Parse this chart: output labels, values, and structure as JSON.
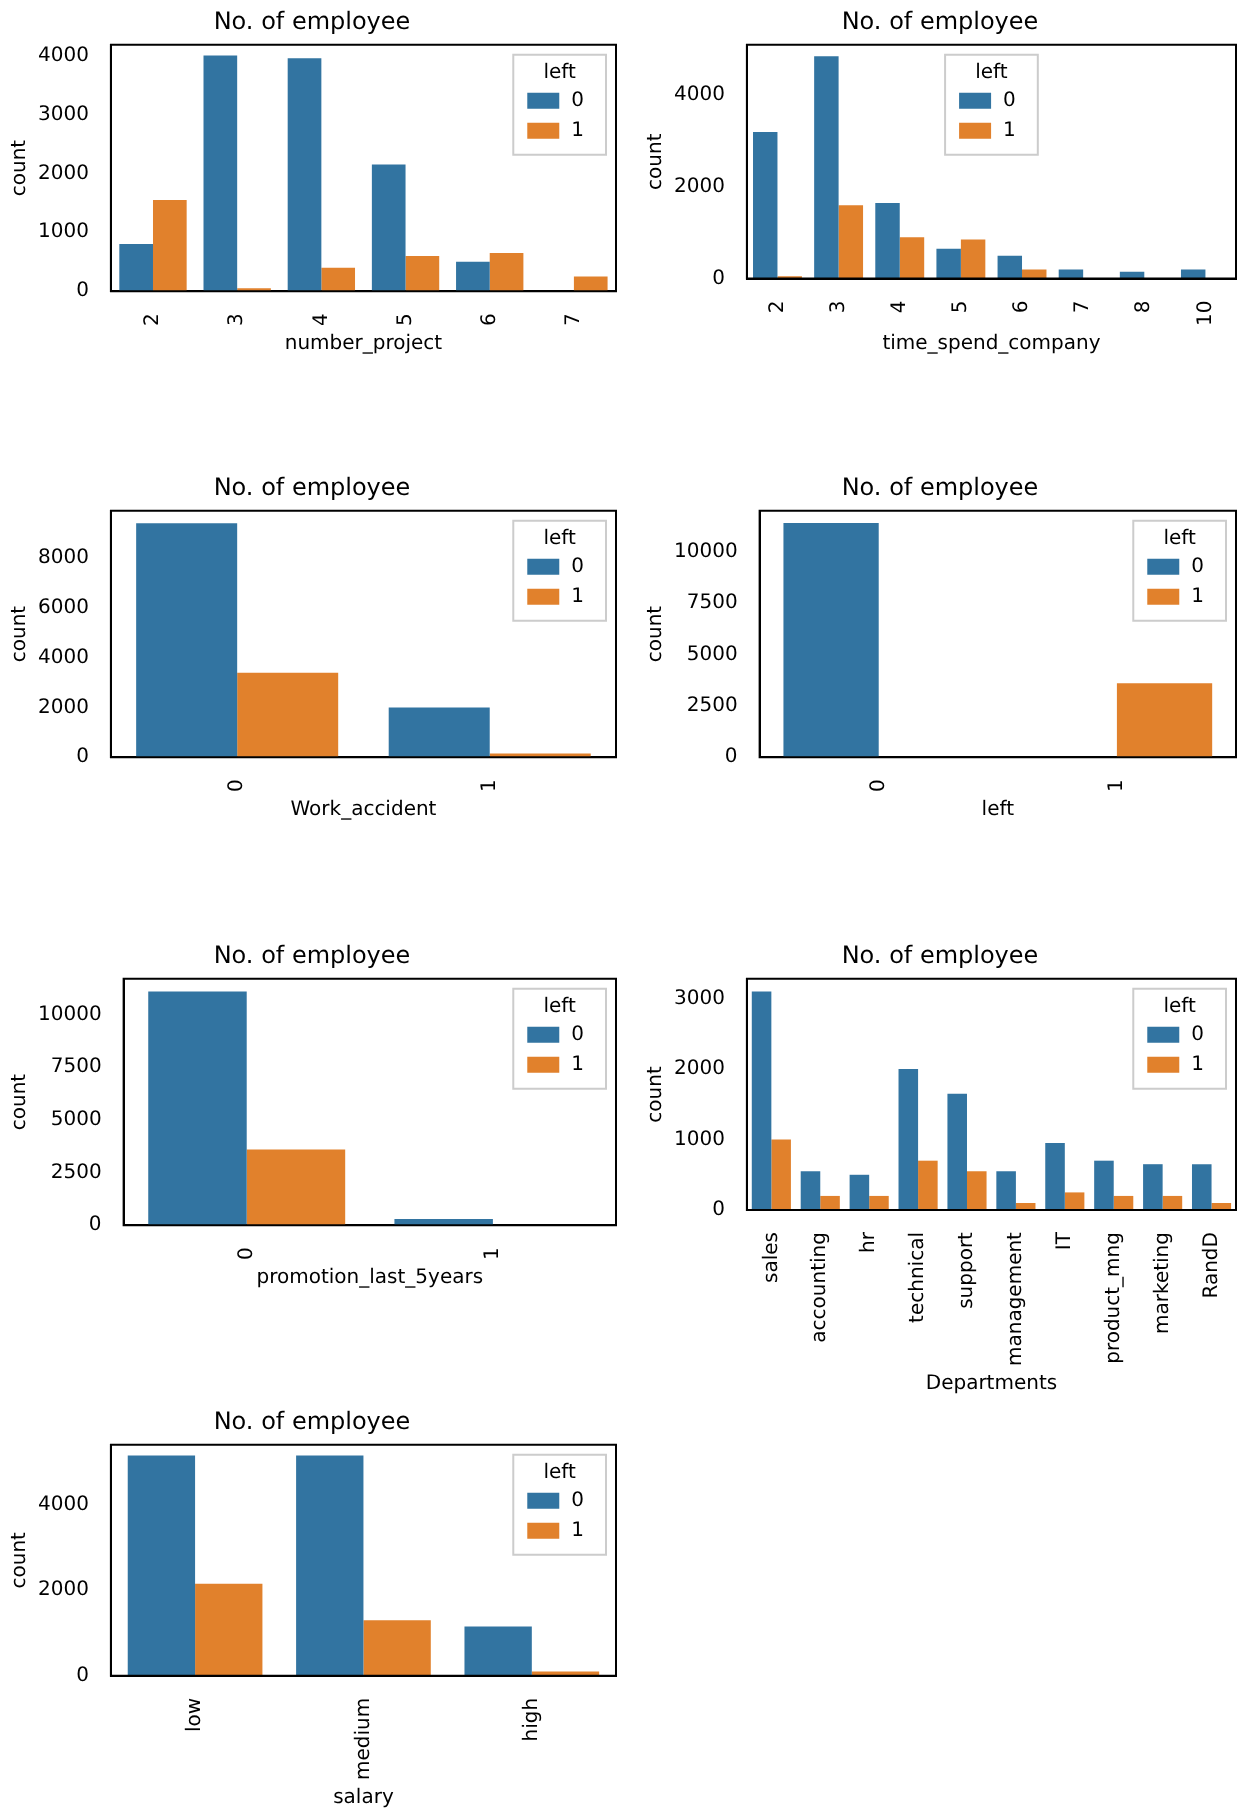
{
  "chart_data": [
    {
      "type": "bar",
      "title": "No. of employee",
      "xlabel": "number_project",
      "ylabel": "count",
      "categories": [
        "2",
        "3",
        "4",
        "5",
        "6",
        "7"
      ],
      "series": [
        {
          "name": "0",
          "color": "#3274a1",
          "values": [
            800,
            4000,
            3950,
            2150,
            500,
            0
          ]
        },
        {
          "name": "1",
          "color": "#e1812c",
          "values": [
            1550,
            50,
            400,
            600,
            650,
            250
          ]
        }
      ],
      "ylim": [
        0,
        4180
      ],
      "yticks": [
        0,
        1000,
        2000,
        3000,
        4000
      ],
      "legend": "top right",
      "legend_title": "left",
      "grid": false
    },
    {
      "type": "bar",
      "title": "No. of employee",
      "xlabel": "time_spend_company",
      "ylabel": "count",
      "categories": [
        "2",
        "3",
        "4",
        "5",
        "6",
        "7",
        "8",
        "10"
      ],
      "series": [
        {
          "name": "0",
          "color": "#3274a1",
          "values": [
            3200,
            4850,
            1650,
            650,
            500,
            200,
            150,
            200
          ]
        },
        {
          "name": "1",
          "color": "#e1812c",
          "values": [
            50,
            1600,
            900,
            850,
            200,
            0,
            0,
            0
          ]
        }
      ],
      "ylim": [
        0,
        5100
      ],
      "yticks": [
        0,
        2000,
        4000
      ],
      "legend": "top",
      "legend_title": "left",
      "grid": false
    },
    {
      "type": "bar",
      "title": "No. of employee",
      "xlabel": "Work_accident",
      "ylabel": "count",
      "categories": [
        "0",
        "1"
      ],
      "series": [
        {
          "name": "0",
          "color": "#3274a1",
          "values": [
            9400,
            2000
          ]
        },
        {
          "name": "1",
          "color": "#e1812c",
          "values": [
            3400,
            150
          ]
        }
      ],
      "ylim": [
        0,
        9900
      ],
      "yticks": [
        0,
        2000,
        4000,
        6000,
        8000
      ],
      "legend": "top right",
      "legend_title": "left",
      "grid": false
    },
    {
      "type": "bar",
      "title": "No. of employee",
      "xlabel": "left",
      "ylabel": "count",
      "categories": [
        "0",
        "1"
      ],
      "series": [
        {
          "name": "0",
          "color": "#3274a1",
          "values": [
            11400,
            0
          ]
        },
        {
          "name": "1",
          "color": "#e1812c",
          "values": [
            0,
            3600
          ]
        }
      ],
      "ylim": [
        0,
        12000
      ],
      "yticks": [
        0,
        2500,
        5000,
        7500,
        10000
      ],
      "legend": "top right",
      "legend_title": "left",
      "grid": false
    },
    {
      "type": "bar",
      "title": "No. of employee",
      "xlabel": "promotion_last_5years",
      "ylabel": "count",
      "categories": [
        "0",
        "1"
      ],
      "series": [
        {
          "name": "0",
          "color": "#3274a1",
          "values": [
            11100,
            300
          ]
        },
        {
          "name": "1",
          "color": "#e1812c",
          "values": [
            3600,
            0
          ]
        }
      ],
      "ylim": [
        0,
        11700
      ],
      "yticks": [
        0,
        2500,
        5000,
        7500,
        10000
      ],
      "legend": "top right",
      "legend_title": "left",
      "grid": false
    },
    {
      "type": "bar",
      "title": "No. of employee",
      "xlabel": "Departments",
      "ylabel": "count",
      "categories": [
        "sales",
        "accounting",
        "hr",
        "technical",
        "support",
        "management",
        "IT",
        "product_mng",
        "marketing",
        "RandD"
      ],
      "series": [
        {
          "name": "0",
          "color": "#3274a1",
          "values": [
            3100,
            550,
            500,
            2000,
            1650,
            550,
            950,
            700,
            650,
            650
          ]
        },
        {
          "name": "1",
          "color": "#e1812c",
          "values": [
            1000,
            200,
            200,
            700,
            550,
            100,
            250,
            200,
            200,
            100
          ]
        }
      ],
      "ylim": [
        0,
        3280
      ],
      "yticks": [
        0,
        1000,
        2000,
        3000
      ],
      "legend": "top right",
      "legend_title": "left",
      "grid": false
    },
    {
      "type": "bar",
      "title": "No. of employee",
      "xlabel": "salary",
      "ylabel": "count",
      "categories": [
        "low",
        "medium",
        "high"
      ],
      "series": [
        {
          "name": "0",
          "color": "#3274a1",
          "values": [
            5150,
            5150,
            1150
          ]
        },
        {
          "name": "1",
          "color": "#e1812c",
          "values": [
            2150,
            1300,
            100
          ]
        }
      ],
      "ylim": [
        0,
        5400
      ],
      "yticks": [
        0,
        2000,
        4000
      ],
      "legend": "top right",
      "legend_title": "left",
      "grid": false
    }
  ]
}
